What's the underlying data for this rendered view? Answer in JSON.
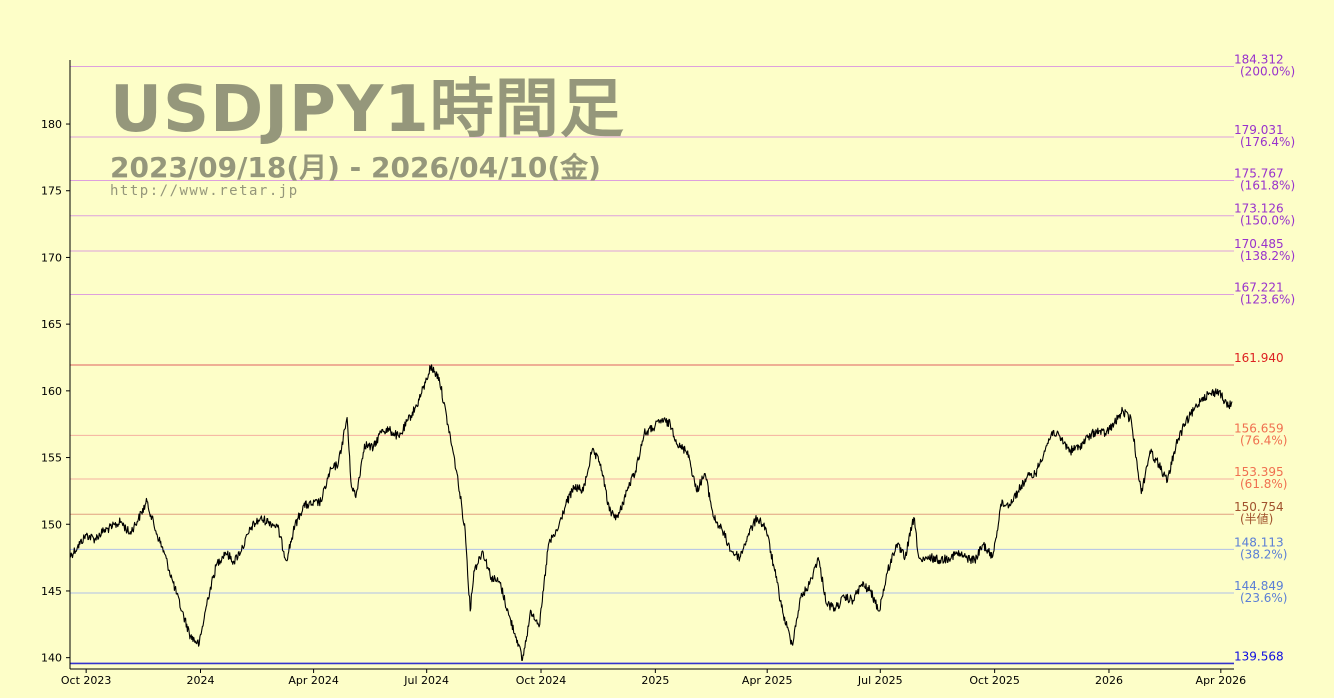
{
  "header": {
    "title": "USDJPY1時間足",
    "period": "2023/09/18(月) - 2026/04/10(金)",
    "url": "http://www.retar.jp"
  },
  "chart_data": {
    "type": "line",
    "ylim": [
      139.3,
      184.8
    ],
    "yticks": [
      140,
      145,
      150,
      155,
      160,
      165,
      170,
      175,
      180
    ],
    "xlim": [
      "2023-09-18",
      "2026-04-10"
    ],
    "xticks": [
      {
        "date": "2023-10-01",
        "label": "Oct 2023"
      },
      {
        "date": "2024-01-01",
        "label": "2024"
      },
      {
        "date": "2024-04-01",
        "label": "Apr 2024"
      },
      {
        "date": "2024-07-01",
        "label": "Jul 2024"
      },
      {
        "date": "2024-10-01",
        "label": "Oct 2024"
      },
      {
        "date": "2025-01-01",
        "label": "2025"
      },
      {
        "date": "2025-04-01",
        "label": "Apr 2025"
      },
      {
        "date": "2025-07-01",
        "label": "Jul 2025"
      },
      {
        "date": "2025-10-01",
        "label": "Oct 2025"
      },
      {
        "date": "2026-01-01",
        "label": "2026"
      },
      {
        "date": "2026-04-01",
        "label": "Apr 2026"
      }
    ],
    "grid": false,
    "series": [
      {
        "color": "#000000",
        "points": [
          [
            "2023-09-18",
            147.6
          ],
          [
            "2023-09-24",
            148.3
          ],
          [
            "2023-10-01",
            149.2
          ],
          [
            "2023-10-08",
            148.9
          ],
          [
            "2023-10-15",
            149.5
          ],
          [
            "2023-10-22",
            149.8
          ],
          [
            "2023-10-29",
            150.2
          ],
          [
            "2023-11-05",
            149.3
          ],
          [
            "2023-11-12",
            150.4
          ],
          [
            "2023-11-19",
            151.7
          ],
          [
            "2023-11-26",
            149.5
          ],
          [
            "2023-12-03",
            147.8
          ],
          [
            "2023-12-10",
            145.6
          ],
          [
            "2023-12-17",
            143.5
          ],
          [
            "2023-12-24",
            141.6
          ],
          [
            "2023-12-31",
            141.0
          ],
          [
            "2024-01-07",
            144.5
          ],
          [
            "2024-01-14",
            147.0
          ],
          [
            "2024-01-21",
            147.9
          ],
          [
            "2024-01-28",
            147.2
          ],
          [
            "2024-02-04",
            148.3
          ],
          [
            "2024-02-11",
            149.8
          ],
          [
            "2024-02-18",
            150.4
          ],
          [
            "2024-02-25",
            150.2
          ],
          [
            "2024-03-03",
            149.8
          ],
          [
            "2024-03-10",
            147.3
          ],
          [
            "2024-03-17",
            149.9
          ],
          [
            "2024-03-24",
            151.4
          ],
          [
            "2024-03-31",
            151.5
          ],
          [
            "2024-04-07",
            151.7
          ],
          [
            "2024-04-14",
            153.9
          ],
          [
            "2024-04-21",
            154.6
          ],
          [
            "2024-04-28",
            158.0
          ],
          [
            "2024-05-01",
            153.2
          ],
          [
            "2024-05-05",
            152.0
          ],
          [
            "2024-05-12",
            156.0
          ],
          [
            "2024-05-19",
            155.7
          ],
          [
            "2024-05-26",
            157.1
          ],
          [
            "2024-06-02",
            157.0
          ],
          [
            "2024-06-09",
            156.5
          ],
          [
            "2024-06-16",
            157.8
          ],
          [
            "2024-06-23",
            158.9
          ],
          [
            "2024-06-30",
            160.6
          ],
          [
            "2024-07-04",
            161.8
          ],
          [
            "2024-07-11",
            161.0
          ],
          [
            "2024-07-18",
            157.5
          ],
          [
            "2024-07-25",
            154.0
          ],
          [
            "2024-08-01",
            149.5
          ],
          [
            "2024-08-05",
            143.5
          ],
          [
            "2024-08-08",
            146.5
          ],
          [
            "2024-08-15",
            148.0
          ],
          [
            "2024-08-22",
            146.0
          ],
          [
            "2024-08-29",
            145.6
          ],
          [
            "2024-09-05",
            143.2
          ],
          [
            "2024-09-12",
            141.3
          ],
          [
            "2024-09-16",
            139.8
          ],
          [
            "2024-09-23",
            143.5
          ],
          [
            "2024-09-30",
            142.5
          ],
          [
            "2024-10-07",
            148.5
          ],
          [
            "2024-10-14",
            149.5
          ],
          [
            "2024-10-21",
            151.5
          ],
          [
            "2024-10-28",
            152.8
          ],
          [
            "2024-11-04",
            152.5
          ],
          [
            "2024-11-11",
            155.5
          ],
          [
            "2024-11-18",
            154.5
          ],
          [
            "2024-11-25",
            151.0
          ],
          [
            "2024-12-02",
            150.5
          ],
          [
            "2024-12-09",
            152.5
          ],
          [
            "2024-12-16",
            154.0
          ],
          [
            "2024-12-23",
            156.8
          ],
          [
            "2024-12-30",
            157.2
          ],
          [
            "2025-01-06",
            157.8
          ],
          [
            "2025-01-13",
            157.5
          ],
          [
            "2025-01-20",
            155.8
          ],
          [
            "2025-01-27",
            155.5
          ],
          [
            "2025-02-03",
            152.5
          ],
          [
            "2025-02-10",
            153.8
          ],
          [
            "2025-02-17",
            150.5
          ],
          [
            "2025-02-24",
            149.5
          ],
          [
            "2025-03-03",
            148.0
          ],
          [
            "2025-03-10",
            147.5
          ],
          [
            "2025-03-17",
            149.3
          ],
          [
            "2025-03-24",
            150.5
          ],
          [
            "2025-03-31",
            149.7
          ],
          [
            "2025-04-07",
            146.5
          ],
          [
            "2025-04-14",
            143.2
          ],
          [
            "2025-04-21",
            141.0
          ],
          [
            "2025-04-28",
            144.5
          ],
          [
            "2025-05-05",
            145.5
          ],
          [
            "2025-05-12",
            147.5
          ],
          [
            "2025-05-19",
            144.0
          ],
          [
            "2025-05-26",
            143.7
          ],
          [
            "2025-06-02",
            144.5
          ],
          [
            "2025-06-09",
            144.3
          ],
          [
            "2025-06-16",
            145.5
          ],
          [
            "2025-06-23",
            145.0
          ],
          [
            "2025-06-30",
            143.5
          ],
          [
            "2025-07-07",
            146.5
          ],
          [
            "2025-07-14",
            148.5
          ],
          [
            "2025-07-21",
            147.5
          ],
          [
            "2025-07-28",
            150.5
          ],
          [
            "2025-08-01",
            147.5
          ],
          [
            "2025-08-04",
            147.2
          ],
          [
            "2025-08-11",
            147.5
          ],
          [
            "2025-08-18",
            147.3
          ],
          [
            "2025-08-25",
            147.5
          ],
          [
            "2025-09-01",
            147.8
          ],
          [
            "2025-09-08",
            147.5
          ],
          [
            "2025-09-15",
            147.3
          ],
          [
            "2025-09-22",
            148.5
          ],
          [
            "2025-09-29",
            147.5
          ],
          [
            "2025-10-03",
            149.5
          ],
          [
            "2025-10-06",
            151.5
          ],
          [
            "2025-10-13",
            151.5
          ],
          [
            "2025-10-20",
            152.5
          ],
          [
            "2025-10-27",
            153.5
          ],
          [
            "2025-11-03",
            153.8
          ],
          [
            "2025-11-10",
            155.5
          ],
          [
            "2025-11-17",
            157.0
          ],
          [
            "2025-11-24",
            156.3
          ],
          [
            "2025-12-01",
            155.5
          ],
          [
            "2025-12-08",
            155.8
          ],
          [
            "2025-12-15",
            156.5
          ],
          [
            "2025-12-22",
            157.0
          ],
          [
            "2025-12-29",
            156.8
          ],
          [
            "2026-01-05",
            157.5
          ],
          [
            "2026-01-12",
            158.5
          ],
          [
            "2026-01-19",
            157.8
          ],
          [
            "2026-01-23",
            155.0
          ],
          [
            "2026-01-27",
            152.3
          ],
          [
            "2026-02-03",
            155.5
          ],
          [
            "2026-02-10",
            154.5
          ],
          [
            "2026-02-17",
            153.2
          ],
          [
            "2026-02-24",
            156.0
          ],
          [
            "2026-03-03",
            157.5
          ],
          [
            "2026-03-10",
            158.5
          ],
          [
            "2026-03-17",
            159.5
          ],
          [
            "2026-03-24",
            159.8
          ],
          [
            "2026-03-31",
            160.0
          ],
          [
            "2026-04-03",
            159.3
          ],
          [
            "2026-04-07",
            158.8
          ],
          [
            "2026-04-10",
            159.2
          ]
        ]
      }
    ],
    "levels": [
      {
        "value": "184.312",
        "pct": "(200.0%)",
        "line": "#dda0dd",
        "text": "#9932cc"
      },
      {
        "value": "179.031",
        "pct": "(176.4%)",
        "line": "#dda0dd",
        "text": "#9932cc"
      },
      {
        "value": "175.767",
        "pct": "(161.8%)",
        "line": "#dda0dd",
        "text": "#9932cc"
      },
      {
        "value": "173.126",
        "pct": "(150.0%)",
        "line": "#dda0dd",
        "text": "#9932cc"
      },
      {
        "value": "170.485",
        "pct": "(138.2%)",
        "line": "#dda0dd",
        "text": "#9932cc"
      },
      {
        "value": "167.221",
        "pct": "(123.6%)",
        "line": "#dda0dd",
        "text": "#9932cc"
      },
      {
        "value": "161.940",
        "pct": "",
        "line": "#e06060",
        "text": "#dd2222"
      },
      {
        "value": "156.659",
        "pct": "(76.4%)",
        "line": "#f5b0a0",
        "text": "#f07050"
      },
      {
        "value": "153.395",
        "pct": "(61.8%)",
        "line": "#f5b0a0",
        "text": "#f07050"
      },
      {
        "value": "150.754",
        "pct": "(半値)",
        "line": "#e0a080",
        "text": "#a0522d"
      },
      {
        "value": "148.113",
        "pct": "(38.2%)",
        "line": "#b0c0e8",
        "text": "#5b7fd6"
      },
      {
        "value": "144.849",
        "pct": "(23.6%)",
        "line": "#b0c0e8",
        "text": "#5b7fd6"
      },
      {
        "value": "139.568",
        "pct": "",
        "line": "#3333cc",
        "text": "#1010e0"
      }
    ]
  }
}
